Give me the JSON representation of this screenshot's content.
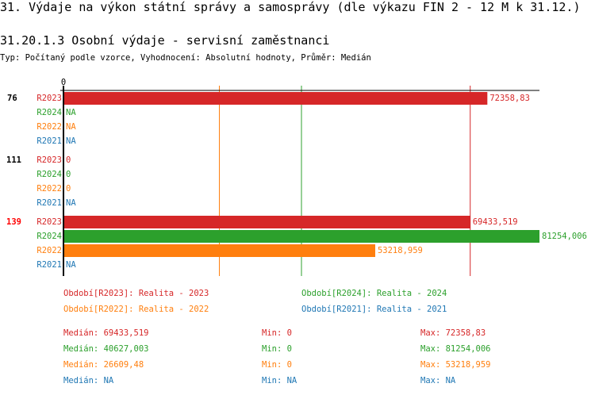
{
  "title": "31. Výdaje na výkon státní správy a samosprávy (dle výkazu FIN 2 - 12 M k 31.12.)",
  "subtitle": "31.20.1.3 Osobní výdaje - servisní zaměstnanci",
  "info": "Typ: Počítaný podle vzorce, Vyhodnocení: Absolutní hodnoty, Průměr: Medián",
  "chart_data": {
    "type": "bar",
    "orientation": "horizontal",
    "x_tick": "0",
    "xlim": [
      0,
      81254.006
    ],
    "groups": [
      {
        "label": "76",
        "highlight": false,
        "rows": [
          {
            "series": "R2023",
            "value": 72358.83,
            "label": "72358,83"
          },
          {
            "series": "R2024",
            "value": null,
            "label": "NA"
          },
          {
            "series": "R2022",
            "value": null,
            "label": "NA"
          },
          {
            "series": "R2021",
            "value": null,
            "label": "NA"
          }
        ]
      },
      {
        "label": "111",
        "highlight": false,
        "rows": [
          {
            "series": "R2023",
            "value": 0,
            "label": "0"
          },
          {
            "series": "R2024",
            "value": 0,
            "label": "0"
          },
          {
            "series": "R2022",
            "value": 0,
            "label": "0"
          },
          {
            "series": "R2021",
            "value": null,
            "label": "NA"
          }
        ]
      },
      {
        "label": "139",
        "highlight": true,
        "rows": [
          {
            "series": "R2023",
            "value": 69433.519,
            "label": "69433,519"
          },
          {
            "series": "R2024",
            "value": 81254.006,
            "label": "81254,006"
          },
          {
            "series": "R2022",
            "value": 53218.959,
            "label": "53218,959"
          },
          {
            "series": "R2021",
            "value": null,
            "label": "NA"
          }
        ]
      }
    ],
    "series_colors": {
      "R2023": "#d62728",
      "R2024": "#2ca02c",
      "R2022": "#ff7f0e",
      "R2021": "#1f77b4"
    },
    "highlight_color": "#ff0000",
    "median_lines": [
      {
        "series": "R2022",
        "value": 26609.48
      },
      {
        "series": "R2024",
        "value": 40627.003
      },
      {
        "series": "R2023",
        "value": 69433.519
      }
    ],
    "legend": [
      {
        "series": "R2023",
        "text": "Období[R2023]: Realita - 2023"
      },
      {
        "series": "R2024",
        "text": "Období[R2024]: Realita - 2024"
      },
      {
        "series": "R2022",
        "text": "Období[R2022]: Realita - 2022"
      },
      {
        "series": "R2021",
        "text": "Období[R2021]: Realita - 2021"
      }
    ],
    "stats": [
      {
        "series": "R2023",
        "median": "Medián: 69433,519",
        "min": "Min: 0",
        "max": "Max: 72358,83"
      },
      {
        "series": "R2024",
        "median": "Medián: 40627,003",
        "min": "Min: 0",
        "max": "Max: 81254,006"
      },
      {
        "series": "R2022",
        "median": "Medián: 26609,48",
        "min": "Min: 0",
        "max": "Max: 53218,959"
      },
      {
        "series": "R2021",
        "median": "Medián: NA",
        "min": "Min: NA",
        "max": "Max: NA"
      }
    ]
  }
}
